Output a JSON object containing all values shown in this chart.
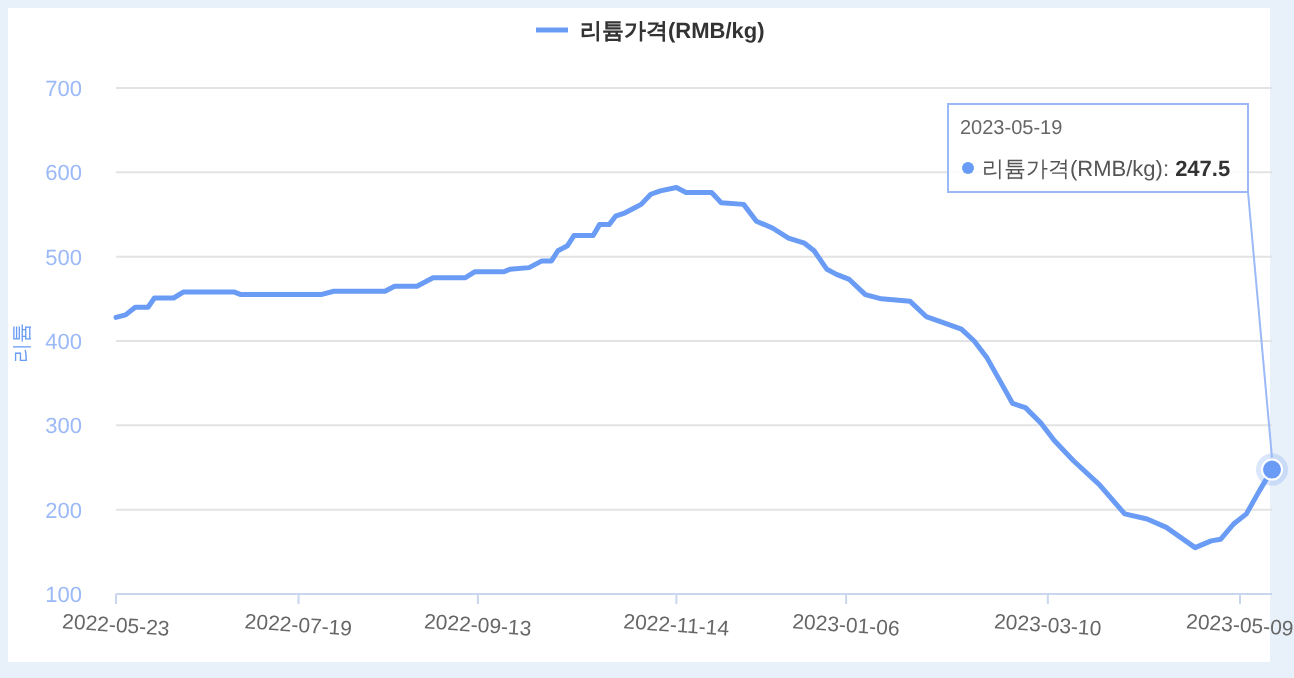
{
  "chart_data": {
    "type": "line",
    "ylabel": "리튬",
    "legend": "top",
    "grid": "y",
    "x": [
      "2022-05-23",
      "2022-05-26",
      "2022-05-29",
      "2022-06-02",
      "2022-06-04",
      "2022-06-10",
      "2022-06-13",
      "2022-06-29",
      "2022-07-01",
      "2022-07-26",
      "2022-07-30",
      "2022-08-15",
      "2022-08-18",
      "2022-08-25",
      "2022-08-30",
      "2022-09-09",
      "2022-09-12",
      "2022-09-21",
      "2022-09-23",
      "2022-09-29",
      "2022-10-03",
      "2022-10-06",
      "2022-10-08",
      "2022-10-11",
      "2022-10-13",
      "2022-10-19",
      "2022-10-21",
      "2022-10-24",
      "2022-10-26",
      "2022-10-29",
      "2022-11-01",
      "2022-11-03",
      "2022-11-06",
      "2022-11-09",
      "2022-11-14",
      "2022-11-17",
      "2022-11-25",
      "2022-11-28",
      "2022-12-05",
      "2022-12-09",
      "2022-12-14",
      "2022-12-19",
      "2022-12-24",
      "2022-12-27",
      "2022-12-31",
      "2023-01-03",
      "2023-01-07",
      "2023-01-12",
      "2023-01-17",
      "2023-01-26",
      "2023-01-31",
      "2023-02-06",
      "2023-02-11",
      "2023-02-15",
      "2023-02-19",
      "2023-02-23",
      "2023-02-27",
      "2023-03-03",
      "2023-03-08",
      "2023-03-12",
      "2023-03-18",
      "2023-03-26",
      "2023-04-03",
      "2023-04-10",
      "2023-04-16",
      "2023-04-22",
      "2023-04-25",
      "2023-04-30",
      "2023-05-03",
      "2023-05-07",
      "2023-05-11",
      "2023-05-15",
      "2023-05-19"
    ],
    "series": [
      {
        "name": "리튬가격(RMB/kg)",
        "color": "#6a9cf5",
        "values": [
          428,
          431,
          440,
          440,
          451,
          451,
          458,
          458,
          455,
          455,
          459,
          459,
          465,
          465,
          475,
          475,
          482,
          482,
          485,
          487,
          495,
          495,
          507,
          513,
          525,
          525,
          538,
          538,
          548,
          552,
          558,
          562,
          574,
          578,
          582,
          576,
          576,
          564,
          562,
          542,
          534,
          522,
          516,
          507,
          485,
          479,
          473,
          455,
          450,
          447,
          429,
          421,
          414,
          400,
          380,
          353,
          326,
          321,
          302,
          282,
          258,
          230,
          195,
          189,
          179,
          163,
          155,
          163,
          165,
          183,
          195,
          222,
          247.5
        ]
      }
    ],
    "xlim": [
      "2022-05-23",
      "2023-05-19"
    ],
    "xticks": [
      "2022-05-23",
      "2022-07-19",
      "2022-09-13",
      "2022-11-14",
      "2023-01-06",
      "2023-03-10",
      "2023-05-09"
    ],
    "ylim": [
      100,
      700
    ],
    "yticks": [
      100,
      200,
      300,
      400,
      500,
      600,
      700
    ],
    "annotations": [
      {
        "text": "2023-05-19\n리튬가격(RMB/kg): 247.5",
        "x": "2023-05-19",
        "y": 247.5
      }
    ]
  }
}
